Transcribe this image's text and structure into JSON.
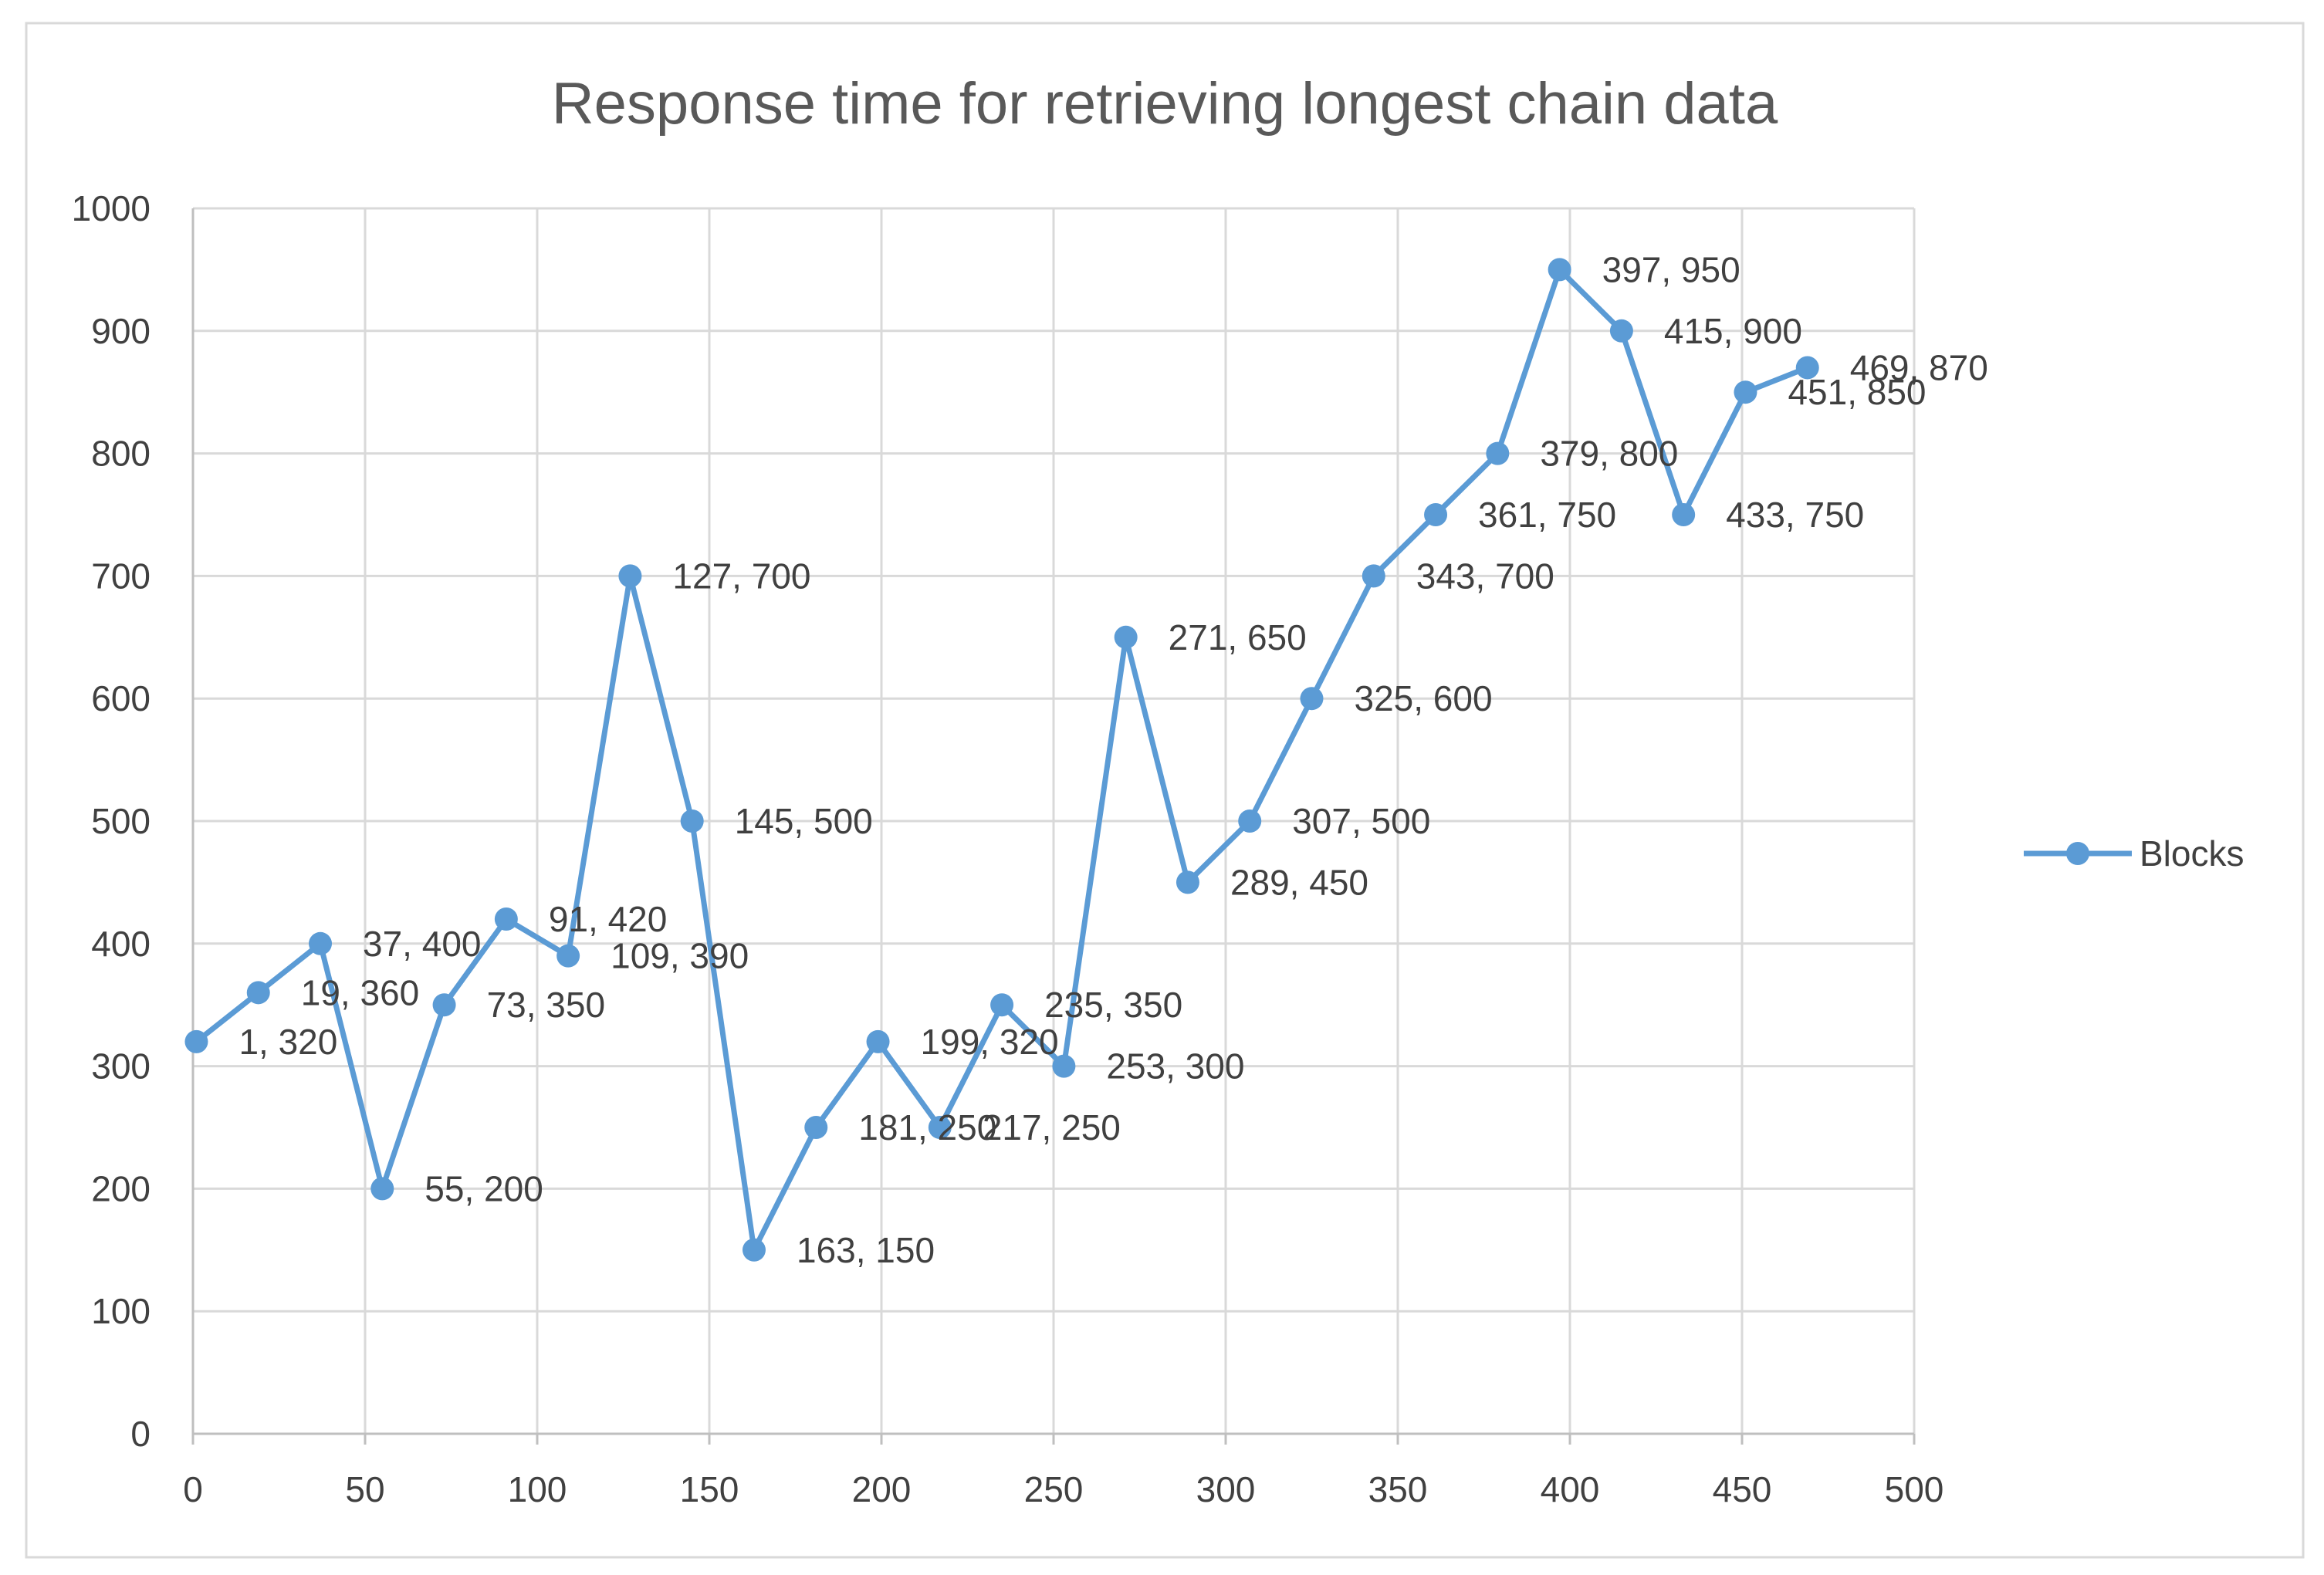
{
  "chart_data": {
    "type": "line",
    "title": "Response time for retrieving longest chain data",
    "xlabel": "",
    "ylabel": "",
    "xlim": [
      0,
      500
    ],
    "ylim": [
      0,
      1000
    ],
    "xticks": [
      0,
      50,
      100,
      150,
      200,
      250,
      300,
      350,
      400,
      450,
      500
    ],
    "yticks": [
      0,
      100,
      200,
      300,
      400,
      500,
      600,
      700,
      800,
      900,
      1000
    ],
    "grid": true,
    "legend_position": "right",
    "series": [
      {
        "name": "Blocks",
        "color": "#5b9bd5",
        "points": [
          {
            "x": 1,
            "y": 320,
            "label": "1, 320"
          },
          {
            "x": 19,
            "y": 360,
            "label": "19, 360"
          },
          {
            "x": 37,
            "y": 400,
            "label": "37, 400"
          },
          {
            "x": 55,
            "y": 200,
            "label": "55, 200"
          },
          {
            "x": 73,
            "y": 350,
            "label": "73, 350"
          },
          {
            "x": 91,
            "y": 420,
            "label": "91, 420"
          },
          {
            "x": 109,
            "y": 390,
            "label": "109, 390"
          },
          {
            "x": 127,
            "y": 700,
            "label": "127, 700"
          },
          {
            "x": 145,
            "y": 500,
            "label": "145, 500"
          },
          {
            "x": 163,
            "y": 150,
            "label": "163, 150"
          },
          {
            "x": 181,
            "y": 250,
            "label": "181, 250"
          },
          {
            "x": 199,
            "y": 320,
            "label": "199, 320"
          },
          {
            "x": 217,
            "y": 250,
            "label": "217, 250"
          },
          {
            "x": 235,
            "y": 350,
            "label": "235, 350"
          },
          {
            "x": 253,
            "y": 300,
            "label": "253, 300"
          },
          {
            "x": 271,
            "y": 650,
            "label": "271, 650"
          },
          {
            "x": 289,
            "y": 450,
            "label": "289, 450"
          },
          {
            "x": 307,
            "y": 500,
            "label": "307, 500"
          },
          {
            "x": 325,
            "y": 600,
            "label": "325, 600"
          },
          {
            "x": 343,
            "y": 700,
            "label": "343, 700"
          },
          {
            "x": 361,
            "y": 750,
            "label": "361, 750"
          },
          {
            "x": 379,
            "y": 800,
            "label": "379, 800"
          },
          {
            "x": 397,
            "y": 950,
            "label": "397, 950"
          },
          {
            "x": 415,
            "y": 900,
            "label": "415, 900"
          },
          {
            "x": 433,
            "y": 750,
            "label": "433, 750"
          },
          {
            "x": 451,
            "y": 850,
            "label": "451, 850"
          },
          {
            "x": 469,
            "y": 870,
            "label": "469, 870"
          }
        ]
      }
    ]
  }
}
